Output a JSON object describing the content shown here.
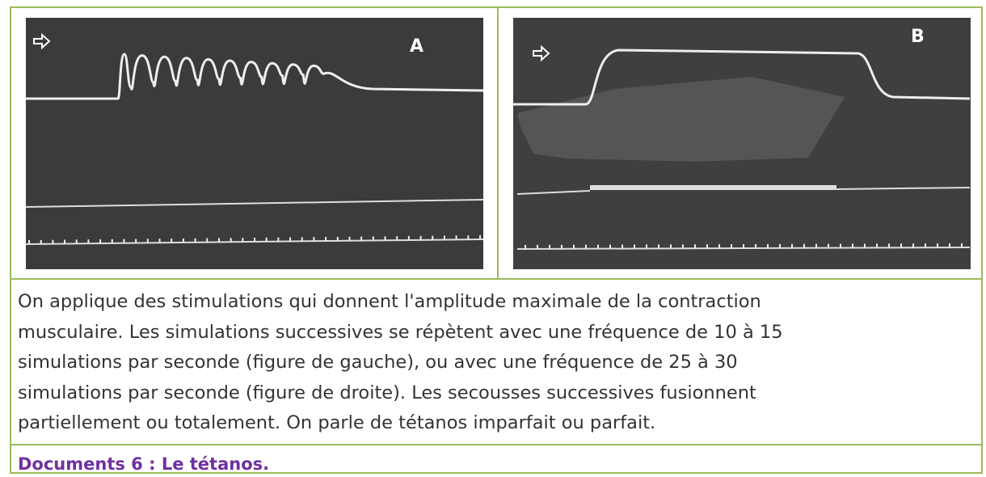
{
  "figures": [
    {
      "label": "A"
    },
    {
      "label": "B"
    }
  ],
  "paragraph": {
    "lines": [
      "On applique des stimulations qui donnent l'amplitude maximale de la contraction",
      "musculaire. Les simulations successives se répètent avec une fréquence de 10 à 15",
      "simulations par seconde (figure de gauche), ou avec une fréquence de 25 à 30",
      "simulations par seconde (figure de droite). Les secousses successives fusionnent",
      "partiellement ou totalement. On parle de tétanos imparfait ou parfait."
    ]
  },
  "caption": "Documents 6 : Le tétanos."
}
